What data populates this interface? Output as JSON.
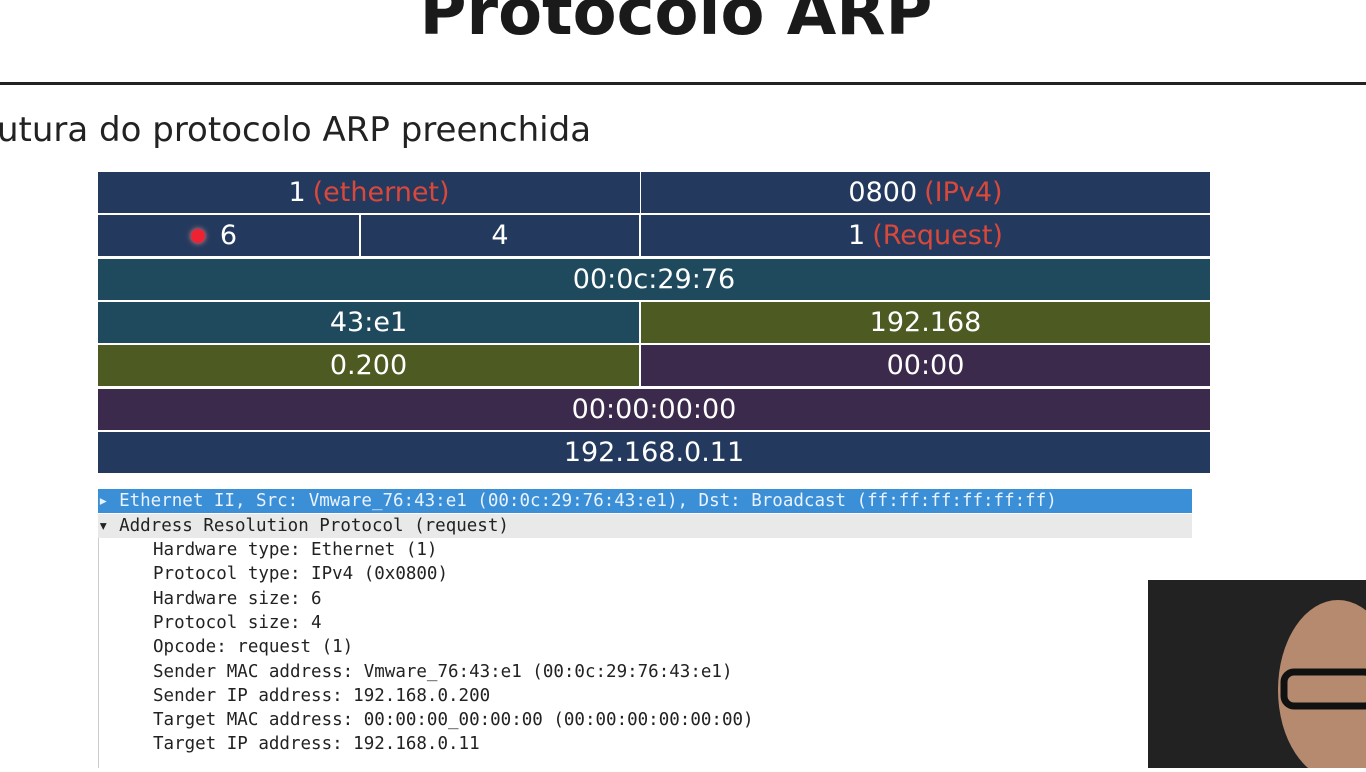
{
  "header": {
    "title": "Protocolo ARP",
    "subtitle": "utura do protocolo ARP preenchida"
  },
  "table": {
    "rows": [
      [
        {
          "text": "1",
          "note": "(ethernet)"
        },
        {
          "text": "0800",
          "note": "(IPv4)"
        }
      ],
      [
        {
          "text": "6"
        },
        {
          "text": "4"
        },
        {
          "text": "1",
          "note": "(Request)"
        }
      ],
      [
        {
          "text": "00:0c:29:76"
        }
      ],
      [
        {
          "text": "43:e1"
        },
        {
          "text": "192.168"
        }
      ],
      [
        {
          "text": "0.200"
        },
        {
          "text": "00:00"
        }
      ],
      [
        {
          "text": "00:00:00:00"
        }
      ],
      [
        {
          "text": "192.168.0.11"
        }
      ]
    ]
  },
  "packet": {
    "ethernet": "Ethernet II, Src: Vmware_76:43:e1 (00:0c:29:76:43:e1), Dst: Broadcast (ff:ff:ff:ff:ff:ff)",
    "arp": "Address Resolution Protocol (request)",
    "fields": [
      "Hardware type: Ethernet (1)",
      "Protocol type: IPv4 (0x0800)",
      "Hardware size: 6",
      "Protocol size: 4",
      "Opcode: request (1)",
      "Sender MAC address: Vmware_76:43:e1 (00:0c:29:76:43:e1)",
      "Sender IP address: 192.168.0.200",
      "Target MAC address: 00:00:00_00:00:00 (00:00:00:00:00:00)",
      "Target IP address: 192.168.0.11"
    ]
  }
}
